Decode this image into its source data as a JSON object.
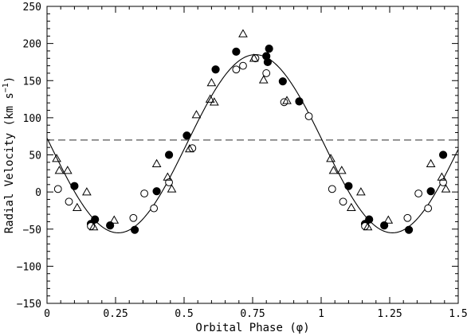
{
  "chart_data": {
    "type": "scatter",
    "title": "",
    "xlabel": "Orbital Phase (φ)",
    "ylabel": "Radial Velocity (km s",
    "ylabel_sup": "−1",
    "ylabel_close": ")",
    "xlim": [
      0,
      1.5
    ],
    "ylim": [
      -150,
      250
    ],
    "x_ticks": [
      0,
      0.25,
      0.5,
      0.75,
      1,
      1.25,
      1.5
    ],
    "x_tick_labels": [
      "0",
      "0.25",
      "0.5",
      "0.75",
      "1",
      "1.25",
      "1.5"
    ],
    "y_ticks": [
      -150,
      -100,
      -50,
      0,
      50,
      100,
      150,
      200,
      250
    ],
    "y_tick_labels": [
      "−150",
      "−100",
      "−50",
      "0",
      "50",
      "100",
      "150",
      "200",
      "250"
    ],
    "grid": false,
    "legend": "none",
    "systemic_velocity": 70,
    "fit_curve": {
      "model": "sinusoid",
      "gamma": 65,
      "semi_amplitude": 120,
      "phase_of_maximum": 0.76
    },
    "series": [
      {
        "marker": "filled-circle",
        "points": [
          [
            0.1,
            8
          ],
          [
            0.16,
            -43
          ],
          [
            0.175,
            -37
          ],
          [
            0.23,
            -45
          ],
          [
            0.32,
            -51
          ],
          [
            0.4,
            1
          ],
          [
            0.445,
            50
          ],
          [
            0.51,
            76
          ],
          [
            0.615,
            165
          ],
          [
            0.69,
            189
          ],
          [
            0.8,
            183
          ],
          [
            0.805,
            175
          ],
          [
            0.81,
            193
          ],
          [
            0.86,
            149
          ],
          [
            0.92,
            122
          ],
          [
            1.1,
            8
          ],
          [
            1.16,
            -43
          ],
          [
            1.175,
            -37
          ],
          [
            1.23,
            -45
          ],
          [
            1.32,
            -51
          ],
          [
            1.4,
            1
          ],
          [
            1.445,
            50
          ]
        ]
      },
      {
        "marker": "open-circle",
        "points": [
          [
            0.04,
            4
          ],
          [
            0.08,
            -13
          ],
          [
            0.16,
            -46
          ],
          [
            0.315,
            -35
          ],
          [
            0.355,
            -2
          ],
          [
            0.39,
            -22
          ],
          [
            0.445,
            13
          ],
          [
            0.53,
            59
          ],
          [
            0.69,
            165
          ],
          [
            0.715,
            170
          ],
          [
            0.76,
            180
          ],
          [
            0.8,
            160
          ],
          [
            0.865,
            121
          ],
          [
            0.955,
            102
          ],
          [
            1.04,
            4
          ],
          [
            1.08,
            -13
          ],
          [
            1.16,
            -46
          ],
          [
            1.315,
            -35
          ],
          [
            1.355,
            -2
          ],
          [
            1.39,
            -22
          ],
          [
            1.445,
            13
          ]
        ]
      },
      {
        "marker": "open-triangle",
        "points": [
          [
            0.035,
            45
          ],
          [
            0.045,
            29
          ],
          [
            0.075,
            29
          ],
          [
            0.11,
            -21
          ],
          [
            0.145,
            0
          ],
          [
            0.17,
            -47
          ],
          [
            0.245,
            -38
          ],
          [
            0.4,
            38
          ],
          [
            0.44,
            20
          ],
          [
            0.455,
            4
          ],
          [
            0.52,
            58
          ],
          [
            0.545,
            104
          ],
          [
            0.595,
            125
          ],
          [
            0.6,
            147
          ],
          [
            0.61,
            121
          ],
          [
            0.715,
            213
          ],
          [
            0.755,
            180
          ],
          [
            0.79,
            151
          ],
          [
            0.875,
            123
          ],
          [
            1.035,
            45
          ],
          [
            1.045,
            29
          ],
          [
            1.075,
            29
          ],
          [
            1.11,
            -21
          ],
          [
            1.145,
            0
          ],
          [
            1.17,
            -47
          ],
          [
            1.245,
            -38
          ],
          [
            1.4,
            38
          ],
          [
            1.44,
            20
          ],
          [
            1.455,
            4
          ]
        ]
      }
    ]
  }
}
